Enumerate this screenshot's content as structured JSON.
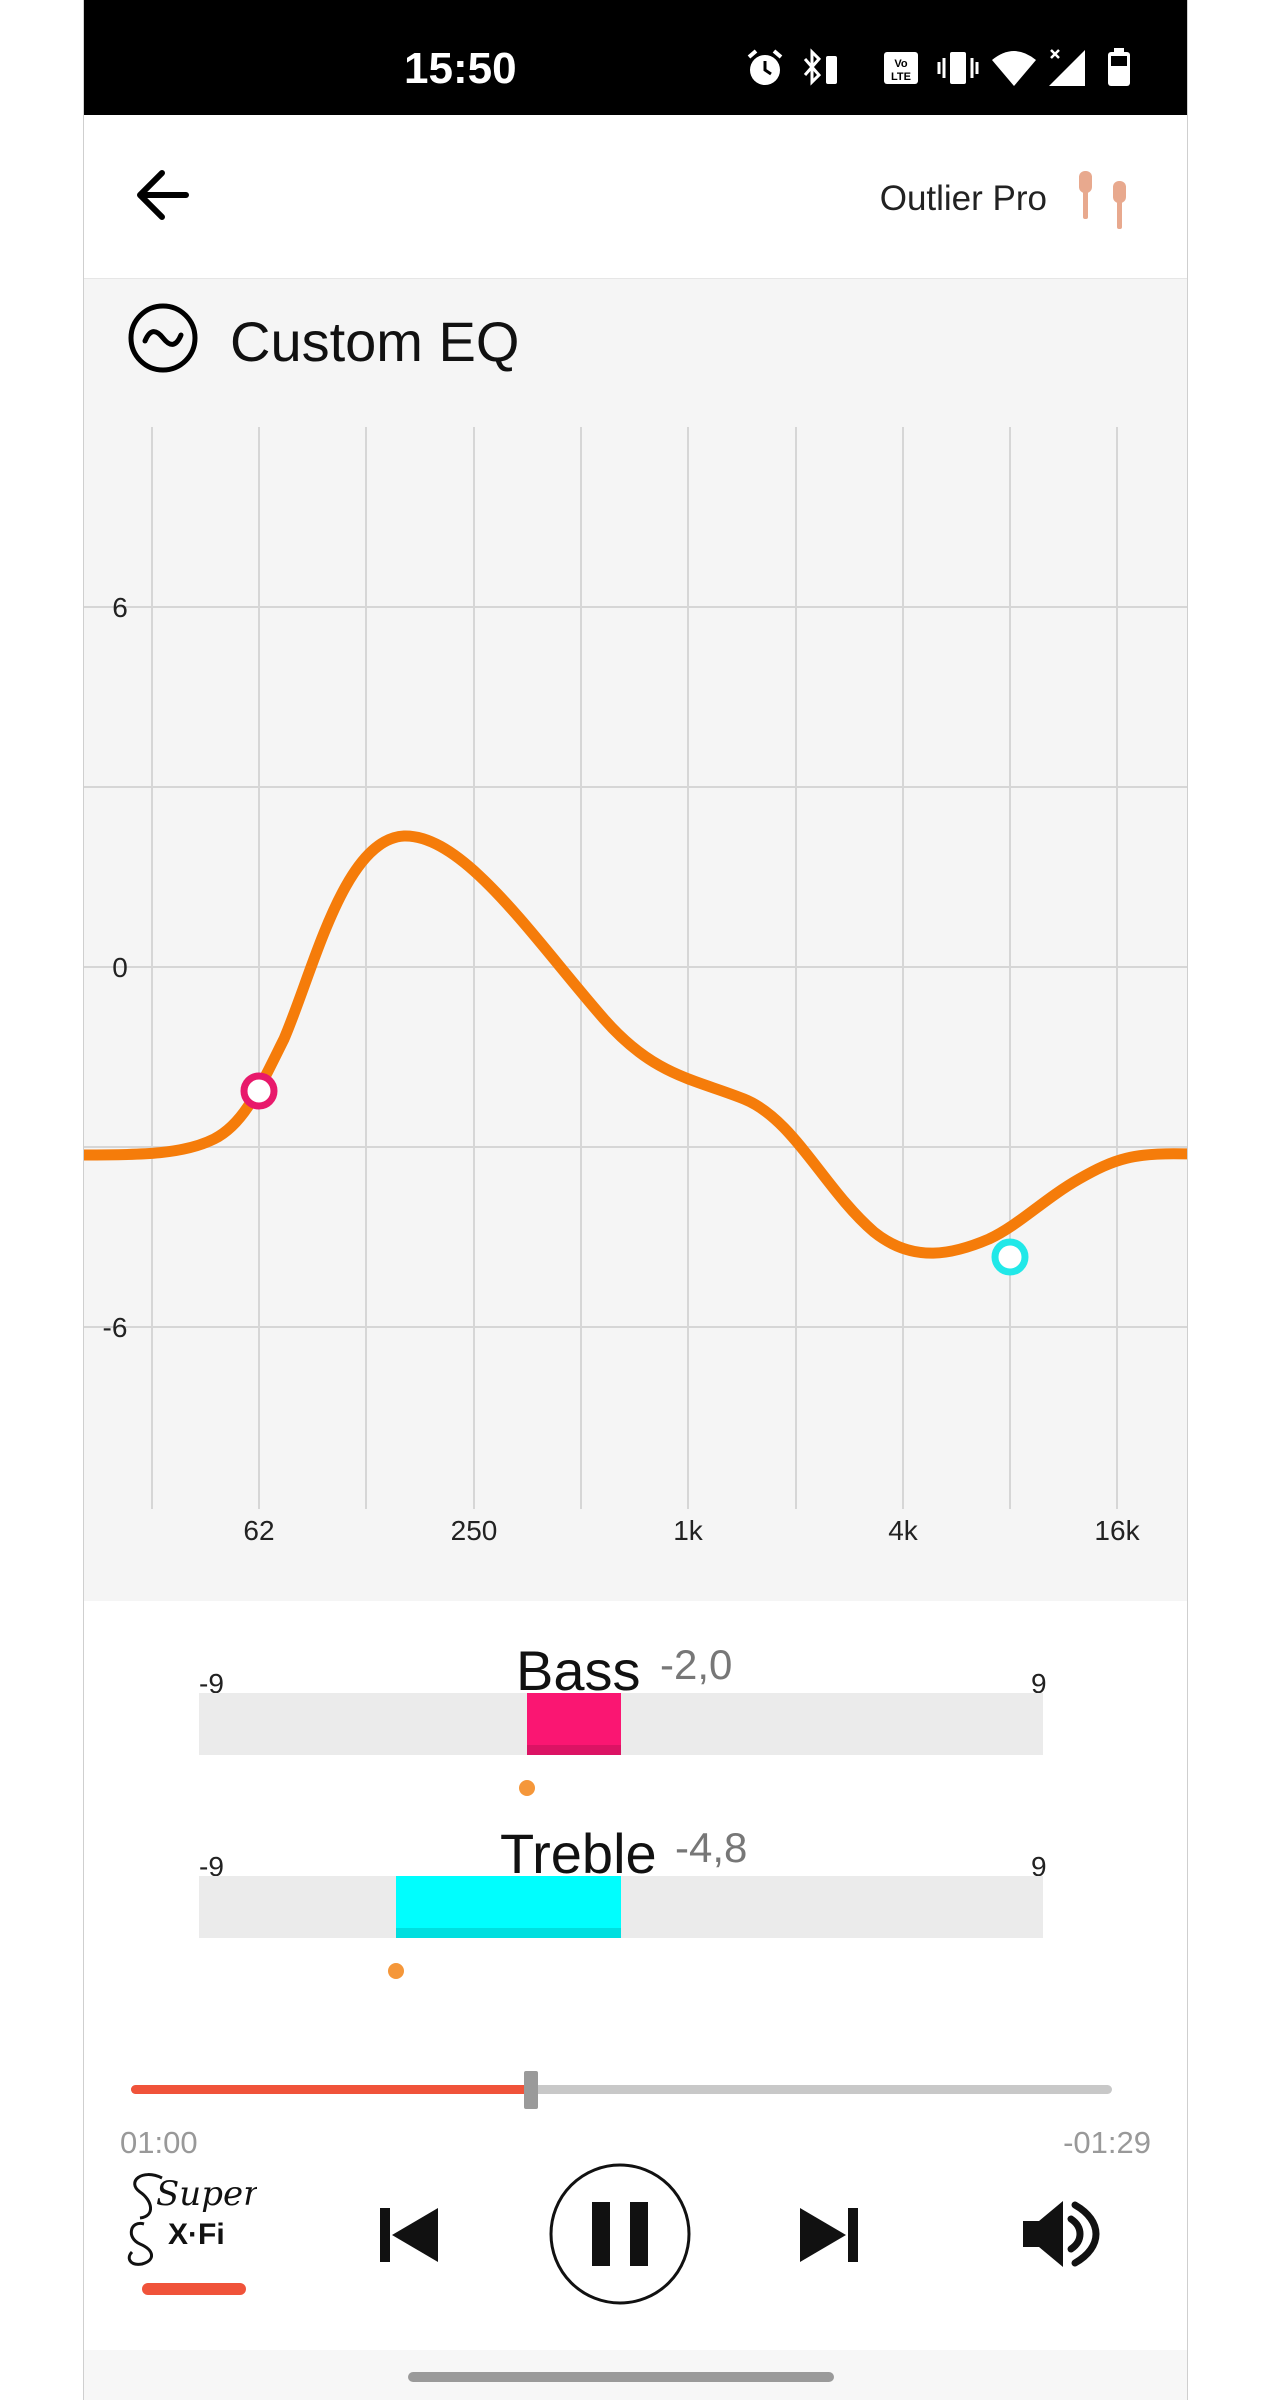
{
  "status_bar": {
    "time": "15:50"
  },
  "header": {
    "device_name": "Outlier Pro"
  },
  "eq": {
    "title": "Custom EQ",
    "y_ticks": [
      "6",
      "0",
      "-6"
    ],
    "x_ticks": [
      "62",
      "250",
      "1k",
      "4k",
      "16k"
    ],
    "curve_color": "#f57c0a",
    "bass_point_color": "#e8196b",
    "treble_point_color": "#21e8e8"
  },
  "bass": {
    "label": "Bass",
    "value": "-2,0",
    "min": "-9",
    "max": "9",
    "level": -2.0,
    "color": "#fa1672"
  },
  "treble": {
    "label": "Treble",
    "value": "-4,8",
    "min": "-9",
    "max": "9",
    "level": -4.8,
    "color": "#00fefe"
  },
  "player": {
    "elapsed": "01:00",
    "remaining": "-01:29",
    "progress_fraction": 0.408,
    "accent": "#f0533a",
    "logo_text_top": "Super",
    "logo_text_bottom": "X·Fi"
  }
}
